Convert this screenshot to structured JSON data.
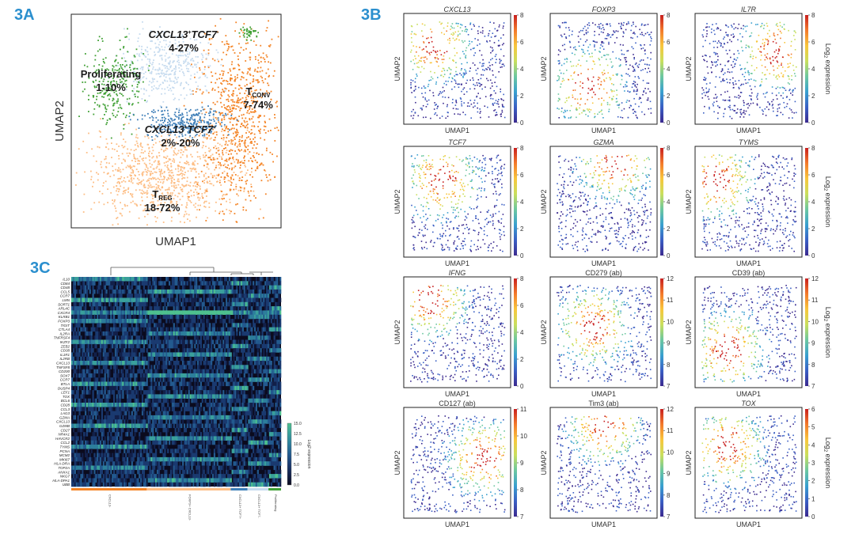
{
  "panel_labels": {
    "a": "3A",
    "b": "3B",
    "c": "3C"
  },
  "chart_data": [
    {
      "type": "scatter",
      "panel": "3A",
      "xlabel": "UMAP1",
      "ylabel": "UMAP2",
      "clusters": [
        {
          "name": "CXCL13",
          "sup": "+",
          "name2": "TCF7",
          "sup2": "-",
          "range": "4-27%",
          "color": "#c6dbef",
          "italic": true
        },
        {
          "name": "Proliferating",
          "range": "1-10%",
          "color": "#41a136"
        },
        {
          "name": "T",
          "sub": "CONV",
          "range": "7-74%",
          "color": "#f48426"
        },
        {
          "name": "CXCL13",
          "sup": "+",
          "name2": "TCF7",
          "sup2": "+",
          "range": "2%-20%",
          "color": "#3f7fb8",
          "italic": true
        },
        {
          "name": "T",
          "sub": "REG",
          "range": "18-72%",
          "color": "#fdbe85"
        }
      ]
    },
    {
      "type": "scatter",
      "panel": "3B",
      "xlabel": "UMAP1",
      "ylabel": "UMAP2",
      "colorbar_label": "Log2 expression",
      "colorbar_label_main": "Log",
      "colorbar_label_sub": "2",
      "colorbar_label_rest": " expression",
      "colormap": [
        "#3b2a8f",
        "#3a5fc4",
        "#39a0cf",
        "#6cc7a0",
        "#c9df5e",
        "#f8c63c",
        "#f37a2b",
        "#c81f1f"
      ],
      "panels": [
        {
          "title": "CXCL13",
          "italic": true,
          "ticks": [
            "0",
            "2",
            "4",
            "6",
            "8"
          ],
          "show_cb_label": false
        },
        {
          "title": "FOXP3",
          "italic": true,
          "ticks": [
            "0",
            "2",
            "4",
            "6",
            "8"
          ],
          "show_cb_label": false
        },
        {
          "title": "IL7R",
          "italic": true,
          "ticks": [
            "0",
            "2",
            "4",
            "6",
            "8"
          ],
          "show_cb_label": true
        },
        {
          "title": "TCF7",
          "italic": true,
          "ticks": [
            "0",
            "2",
            "4",
            "6",
            "8"
          ],
          "show_cb_label": false
        },
        {
          "title": "GZMA",
          "italic": true,
          "ticks": [
            "0",
            "2",
            "4",
            "6",
            "8"
          ],
          "show_cb_label": false
        },
        {
          "title": "TYMS",
          "italic": true,
          "ticks": [
            "0",
            "2",
            "4",
            "6",
            "8"
          ],
          "show_cb_label": true
        },
        {
          "title": "IFNG",
          "italic": true,
          "ticks": [
            "0",
            "2",
            "4",
            "6",
            "8"
          ],
          "show_cb_label": false
        },
        {
          "title": "CD279 (ab)",
          "italic": false,
          "ticks": [
            "7",
            "8",
            "9",
            "10",
            "11",
            "12"
          ],
          "show_cb_label": false
        },
        {
          "title": "CD39 (ab)",
          "italic": false,
          "ticks": [
            "7",
            "8",
            "9",
            "10",
            "11",
            "12"
          ],
          "show_cb_label": true
        },
        {
          "title": "CD127 (ab)",
          "italic": false,
          "ticks": [
            "7",
            "8",
            "9",
            "10",
            "11"
          ],
          "show_cb_label": false
        },
        {
          "title": "Tim3 (ab)",
          "italic": false,
          "ticks": [
            "7",
            "8",
            "9",
            "10",
            "11",
            "12"
          ],
          "show_cb_label": false
        },
        {
          "title": "TOX",
          "italic": true,
          "ticks": [
            "0",
            "1",
            "2",
            "3",
            "4",
            "5",
            "6"
          ],
          "show_cb_label": true
        }
      ]
    },
    {
      "type": "heatmap",
      "panel": "3C",
      "genes": [
        "IL10",
        "CD84",
        "CD48",
        "CCL5",
        "CCR7",
        "LMN",
        "SORT1",
        "ARL4C",
        "CXCR4",
        "KLRB1",
        "FOXP3",
        "TIGIT",
        "CTLA4",
        "IL2RA",
        "TNFRSF4",
        "IKZF2",
        "ZEB2",
        "CD38",
        "IL1R1",
        "IL2RB",
        "CXCL13",
        "TNFSF8",
        "CD200",
        "SOX7",
        "CCR7",
        "BTLA",
        "DUSP4",
        "LEF1",
        "TOX",
        "BCL6",
        "CD28",
        "CCL3",
        "LAG3",
        "GZMA",
        "CXCL13",
        "GZMB",
        "CD27",
        "NR4A1",
        "HAVCR2",
        "CCL2",
        "TYMS",
        "PCNA",
        "MCM2",
        "MKI67",
        "HLA-DRA",
        "TOP2A",
        "ANXA1",
        "NKG7",
        "HLA-DPA1",
        "UBB"
      ],
      "colorbar_ticks": [
        "0.0",
        "2.5",
        "5.0",
        "7.5",
        "10.0",
        "12.5",
        "15.0"
      ],
      "colorbar_label": "Log2 expression",
      "groups": [
        {
          "name": "CXCL13-",
          "color": "#f48426"
        },
        {
          "name": "FOXP3+ CXCL13-",
          "color": "#fdbe85"
        },
        {
          "name": "CXCL13+ TCF7+",
          "color": "#3f7fb8"
        },
        {
          "name": "CXCL13+ TCF7-",
          "color": "#c6dbef"
        },
        {
          "name": "Proliferating",
          "color": "#41a136"
        }
      ],
      "heatmap_colors": [
        "#0b0b1e",
        "#12204a",
        "#1a3a70",
        "#235a8f",
        "#2d7e9c",
        "#3aa09c",
        "#4ec18f"
      ]
    }
  ]
}
